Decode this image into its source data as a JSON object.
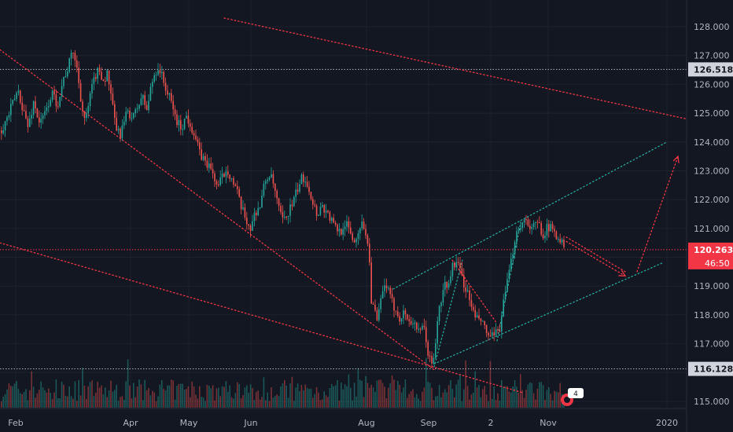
{
  "chart_data": {
    "type": "candlestick",
    "price_axis": {
      "ticks": [
        "115.000",
        "116.000",
        "117.000",
        "118.000",
        "119.000",
        "120.000",
        "121.000",
        "122.000",
        "123.000",
        "124.000",
        "125.000",
        "126.000",
        "127.000",
        "128.000"
      ],
      "ylim": [
        114.85,
        128.35
      ]
    },
    "time_axis": {
      "labels": [
        "Feb",
        "Apr",
        "May",
        "Jun",
        "Aug",
        "Sep",
        "2",
        "Nov",
        "2020"
      ]
    },
    "price_labels": {
      "high_line": "126.518",
      "current": "120.263",
      "countdown": "46:50",
      "low_line": "116.128"
    },
    "corner_badge": "4",
    "close_path": [
      [
        0,
        124.4
      ],
      [
        8,
        124.8
      ],
      [
        15,
        125.3
      ],
      [
        22,
        125.8
      ],
      [
        28,
        125.2
      ],
      [
        35,
        124.5
      ],
      [
        42,
        125.4
      ],
      [
        50,
        124.6
      ],
      [
        58,
        125.1
      ],
      [
        65,
        125.7
      ],
      [
        72,
        125.3
      ],
      [
        80,
        126.2
      ],
      [
        86,
        126.6
      ],
      [
        92,
        127.2
      ],
      [
        98,
        126.4
      ],
      [
        104,
        125.1
      ],
      [
        108,
        124.7
      ],
      [
        114,
        125.6
      ],
      [
        120,
        126.3
      ],
      [
        126,
        126.5
      ],
      [
        131,
        126.1
      ],
      [
        136,
        126.4
      ],
      [
        141,
        125.4
      ],
      [
        146,
        124.6
      ],
      [
        151,
        124.2
      ],
      [
        156,
        124.6
      ],
      [
        162,
        125.1
      ],
      [
        168,
        124.8
      ],
      [
        174,
        125.2
      ],
      [
        180,
        125.6
      ],
      [
        186,
        125.1
      ],
      [
        191,
        125.9
      ],
      [
        196,
        126.4
      ],
      [
        201,
        126.6
      ],
      [
        206,
        126.2
      ],
      [
        212,
        125.7
      ],
      [
        218,
        125.3
      ],
      [
        224,
        124.7
      ],
      [
        230,
        124.5
      ],
      [
        236,
        124.9
      ],
      [
        242,
        124.6
      ],
      [
        248,
        124.1
      ],
      [
        253,
        123.6
      ],
      [
        258,
        123.4
      ],
      [
        264,
        123.2
      ],
      [
        270,
        122.9
      ],
      [
        276,
        122.4
      ],
      [
        282,
        122.8
      ],
      [
        288,
        123.1
      ],
      [
        294,
        122.7
      ],
      [
        300,
        122.3
      ],
      [
        306,
        121.7
      ],
      [
        312,
        121.3
      ],
      [
        318,
        121.0
      ],
      [
        324,
        121.6
      ],
      [
        330,
        121.8
      ],
      [
        336,
        122.6
      ],
      [
        342,
        122.9
      ],
      [
        348,
        122.4
      ],
      [
        354,
        121.6
      ],
      [
        360,
        121.2
      ],
      [
        366,
        121.6
      ],
      [
        372,
        121.9
      ],
      [
        378,
        122.4
      ],
      [
        384,
        122.8
      ],
      [
        390,
        122.6
      ],
      [
        396,
        122.0
      ],
      [
        402,
        121.5
      ],
      [
        408,
        121.8
      ],
      [
        414,
        121.6
      ],
      [
        420,
        121.3
      ],
      [
        426,
        121.0
      ],
      [
        432,
        120.9
      ],
      [
        438,
        121.2
      ],
      [
        444,
        120.9
      ],
      [
        450,
        120.5
      ],
      [
        456,
        121.1
      ],
      [
        462,
        121.1
      ],
      [
        468,
        120.4
      ],
      [
        471,
        118.6
      ],
      [
        475,
        118.2
      ],
      [
        479,
        117.7
      ],
      [
        484,
        118.6
      ],
      [
        490,
        119.1
      ],
      [
        496,
        118.5
      ],
      [
        502,
        118.2
      ],
      [
        508,
        117.9
      ],
      [
        514,
        118.1
      ],
      [
        520,
        117.7
      ],
      [
        526,
        117.8
      ],
      [
        532,
        117.3
      ],
      [
        538,
        117.6
      ],
      [
        544,
        116.6
      ],
      [
        549,
        116.2
      ],
      [
        553,
        117.1
      ],
      [
        557,
        118.1
      ],
      [
        561,
        118.6
      ],
      [
        565,
        119.1
      ],
      [
        569,
        118.9
      ],
      [
        573,
        119.6
      ],
      [
        577,
        119.8
      ],
      [
        581,
        119.7
      ],
      [
        585,
        119.5
      ],
      [
        589,
        119.1
      ],
      [
        594,
        118.7
      ],
      [
        599,
        118.3
      ],
      [
        604,
        117.8
      ],
      [
        609,
        117.9
      ],
      [
        614,
        117.6
      ],
      [
        619,
        117.3
      ],
      [
        624,
        117.2
      ],
      [
        629,
        117.3
      ],
      [
        634,
        117.5
      ],
      [
        639,
        118.3
      ],
      [
        644,
        119.1
      ],
      [
        649,
        119.8
      ],
      [
        654,
        120.7
      ],
      [
        659,
        121.1
      ],
      [
        664,
        121.2
      ],
      [
        669,
        121.4
      ],
      [
        674,
        120.9
      ],
      [
        679,
        121.1
      ],
      [
        684,
        121.2
      ],
      [
        689,
        120.8
      ],
      [
        694,
        121.0
      ],
      [
        699,
        121.0
      ],
      [
        704,
        120.9
      ],
      [
        709,
        120.7
      ],
      [
        714,
        120.5
      ],
      [
        718,
        120.26
      ]
    ],
    "trend_lines": [
      {
        "color": "#f23645",
        "from": [
          285,
          128.3
        ],
        "to": [
          873,
          124.8
        ]
      },
      {
        "color": "#f23645",
        "from": [
          0,
          127.2
        ],
        "to": [
          552,
          116.1
        ]
      },
      {
        "color": "#f23645",
        "from": [
          0,
          120.5
        ],
        "to": [
          665,
          115.3
        ]
      },
      {
        "color": "#f23645",
        "from": [
          720,
          120.7
        ],
        "to": [
          795,
          119.5
        ]
      },
      {
        "color": "#f23645",
        "from": [
          575,
          119.9
        ],
        "to": [
          632,
          117.7
        ]
      },
      {
        "color": "#f23645",
        "from": [
          810,
          119.5
        ],
        "to": [
          862,
          123.5
        ],
        "arrow": true
      },
      {
        "color": "#f23645",
        "from": [
          720,
          120.55
        ],
        "to": [
          795,
          119.35
        ],
        "arrow": true
      },
      {
        "color": "#26a69a",
        "from": [
          500,
          118.9
        ],
        "to": [
          848,
          124.0
        ]
      },
      {
        "color": "#26a69a",
        "from": [
          552,
          116.3
        ],
        "to": [
          842,
          119.8
        ]
      },
      {
        "color": "#26a69a",
        "from": [
          552,
          116.2
        ],
        "to": [
          588,
          119.9
        ]
      },
      {
        "color": "#26a69a",
        "from": [
          632,
          117.1
        ],
        "to": [
          662,
          121.2
        ]
      }
    ],
    "colors": {
      "background": "#131722",
      "up": "#26a69a",
      "down": "#ef5350",
      "grid": "#1e222d",
      "axis_text": "#b2b5be",
      "current": "#f23645"
    }
  }
}
